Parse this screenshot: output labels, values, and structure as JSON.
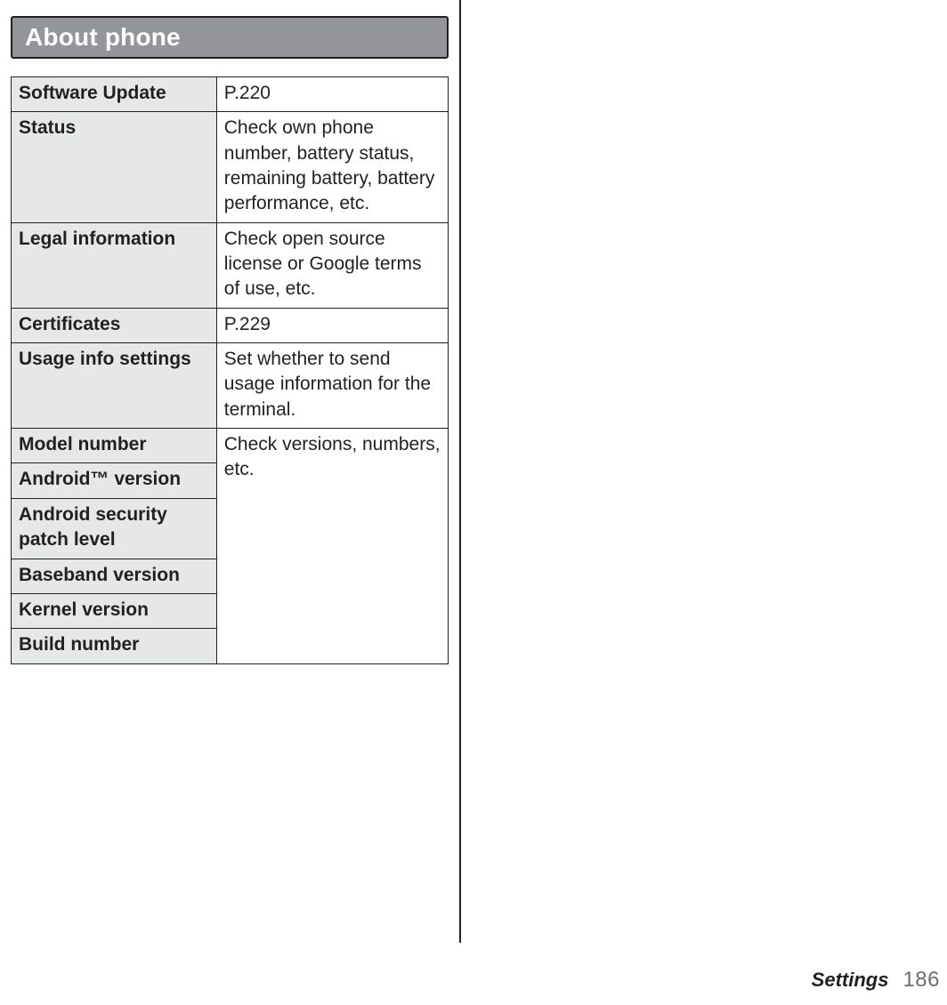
{
  "header": {
    "title": "About phone",
    "bg_color": "#939598",
    "text_color": "#ffffff",
    "border_color": "#231f20"
  },
  "table": {
    "label_bg": "#e6e7e8",
    "border_color": "#231f20",
    "rows": [
      {
        "label": "Software Update",
        "value": "P.220"
      },
      {
        "label": "Status",
        "value": "Check own phone number, battery status, remaining battery, battery performance, etc."
      },
      {
        "label": "Legal information",
        "value": "Check open source license or Google terms of use, etc."
      },
      {
        "label": "Certificates",
        "value": "P.229"
      },
      {
        "label": "Usage info settings",
        "value": "Set whether to send usage information for the terminal."
      },
      {
        "label": "Model number"
      },
      {
        "label": "Android™ version"
      },
      {
        "label": "Android security patch level"
      },
      {
        "label": "Baseband version"
      },
      {
        "label": "Kernel version"
      },
      {
        "label": "Build number"
      }
    ],
    "merged_value": "Check versions, numbers, etc.",
    "merged_start_index": 5,
    "merged_rowspan": 6
  },
  "footer": {
    "section": "Settings",
    "page_number": "186"
  },
  "typography": {
    "header_fontsize": 28,
    "cell_fontsize": 21,
    "footer_section_fontsize": 22,
    "footer_page_fontsize": 24
  },
  "colors": {
    "page_bg": "#ffffff",
    "text": "#231f20",
    "page_number": "#6d6e71"
  }
}
